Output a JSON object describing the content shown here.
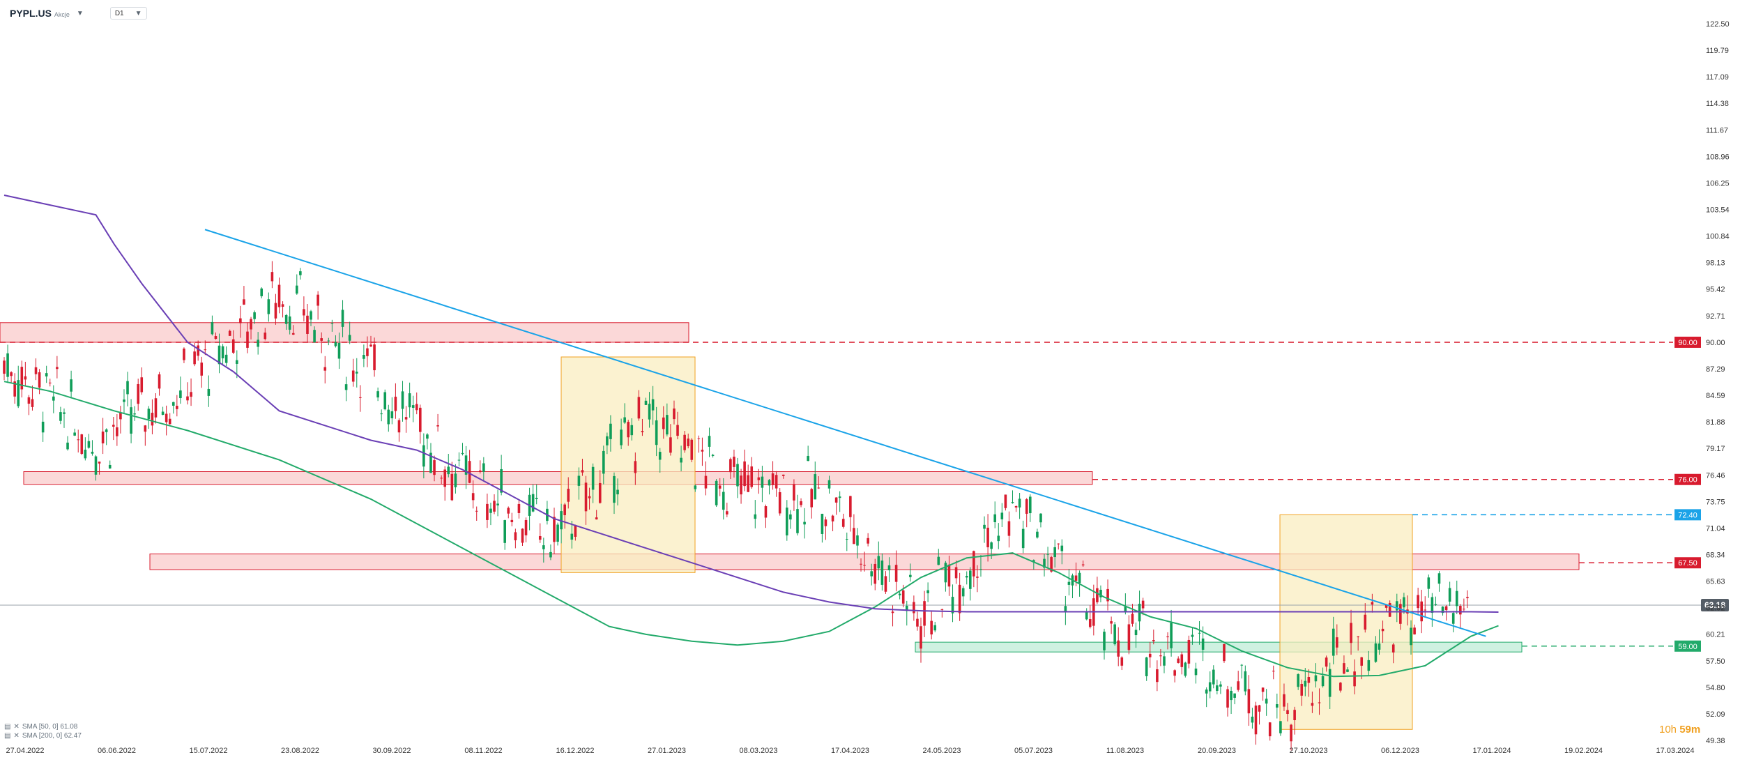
{
  "header": {
    "symbol": "PYPL.US",
    "symbol_type": "Akcje",
    "timeframe": "D1"
  },
  "legend": [
    {
      "label": "SMA [50, 0] 61.08",
      "color": "#22aa6a"
    },
    {
      "label": "SMA [200, 0] 62.47",
      "color": "#6a3fb5"
    }
  ],
  "timer": {
    "hours": "10h",
    "minutes": "59m"
  },
  "colors": {
    "up": "#0f9d58",
    "down": "#d81b2e",
    "sma50": "#22aa6a",
    "sma200": "#6a3fb5",
    "trendline": "#1aa3e8",
    "resistance_zone": "#f7b8b8",
    "support_zone": "#a8e6c8",
    "highlight_box": "#f9eec0"
  },
  "chart_data": {
    "type": "candlestick",
    "title": "",
    "y_axis": {
      "min": 49.38,
      "max": 122.5,
      "ticks": [
        "122.50",
        "119.79",
        "117.09",
        "114.38",
        "111.67",
        "108.96",
        "106.25",
        "103.54",
        "100.84",
        "98.13",
        "95.42",
        "92.71",
        "90.00",
        "87.29",
        "84.59",
        "81.88",
        "79.17",
        "76.46",
        "73.75",
        "71.04",
        "68.34",
        "65.63",
        "62.92",
        "60.21",
        "57.50",
        "54.80",
        "52.09",
        "49.38"
      ]
    },
    "x_axis": {
      "ticks": [
        "27.04.2022",
        "06.06.2022",
        "15.07.2022",
        "23.08.2022",
        "30.09.2022",
        "08.11.2022",
        "16.12.2022",
        "27.01.2023",
        "08.03.2023",
        "17.04.2023",
        "24.05.2023",
        "05.07.2023",
        "11.08.2023",
        "20.09.2023",
        "27.10.2023",
        "06.12.2023",
        "17.01.2024",
        "19.02.2024",
        "17.03.2024"
      ]
    },
    "last_price": 63.18,
    "horizontal_levels": [
      {
        "value": 90.0,
        "label": "90.00",
        "color": "#d81b2e"
      },
      {
        "value": 76.0,
        "label": "76.00",
        "color": "#d81b2e"
      },
      {
        "value": 72.4,
        "label": "72.40",
        "color": "#1aa3e8"
      },
      {
        "value": 67.5,
        "label": "67.50",
        "color": "#d81b2e"
      },
      {
        "value": 59.0,
        "label": "59.00",
        "color": "#22aa6a"
      }
    ],
    "zones": [
      {
        "kind": "resistance",
        "from_date": "27.04.2022",
        "to_date": "27.01.2023",
        "low": 90.0,
        "high": 92.0
      },
      {
        "kind": "resistance",
        "from_date": "27.04.2022",
        "to_date": "05.07.2023",
        "low": 75.5,
        "high": 76.8
      },
      {
        "kind": "resistance",
        "from_date": "06.06.2022",
        "to_date": "17.01.2024",
        "low": 66.8,
        "high": 68.4
      },
      {
        "kind": "support",
        "from_date": "24.05.2023",
        "to_date": "17.01.2024",
        "low": 58.4,
        "high": 59.4
      }
    ],
    "boxes": [
      {
        "from_date": "16.12.2022",
        "to_date": "27.01.2023",
        "low": 66.5,
        "high": 88.5
      },
      {
        "from_date": "20.09.2023",
        "to_date": "06.12.2023",
        "low": 50.5,
        "high": 72.4
      }
    ],
    "trendline": {
      "start": {
        "date": "15.07.2022",
        "value": 101.5
      },
      "end": {
        "date": "19.02.2024",
        "value": 60.0
      }
    },
    "series": [
      {
        "name": "SMA [50, 0]",
        "points": [
          [
            0,
            86
          ],
          [
            0.5,
            85
          ],
          [
            1.2,
            83
          ],
          [
            2,
            81
          ],
          [
            3,
            78
          ],
          [
            4,
            74
          ],
          [
            5,
            69
          ],
          [
            6,
            64
          ],
          [
            6.6,
            61
          ],
          [
            7,
            60.2
          ],
          [
            7.5,
            59.5
          ],
          [
            8,
            59.1
          ],
          [
            8.5,
            59.5
          ],
          [
            9,
            60.5
          ],
          [
            9.5,
            63
          ],
          [
            10,
            66
          ],
          [
            10.5,
            68
          ],
          [
            11,
            68.5
          ],
          [
            11.5,
            66.5
          ],
          [
            12,
            64
          ],
          [
            12.5,
            62
          ],
          [
            13,
            60.8
          ],
          [
            13.5,
            58.5
          ],
          [
            14,
            56.8
          ],
          [
            14.5,
            55.9
          ],
          [
            15,
            56
          ],
          [
            15.5,
            57
          ],
          [
            16,
            60
          ],
          [
            16.3,
            61.08
          ]
        ]
      },
      {
        "name": "SMA [200, 0]",
        "points": [
          [
            0,
            105
          ],
          [
            0.5,
            104
          ],
          [
            1,
            103
          ],
          [
            1.2,
            100
          ],
          [
            1.5,
            96
          ],
          [
            2,
            90
          ],
          [
            2.5,
            87
          ],
          [
            3,
            83
          ],
          [
            3.5,
            81.5
          ],
          [
            4,
            80
          ],
          [
            4.5,
            79
          ],
          [
            5,
            77
          ],
          [
            5.5,
            74.5
          ],
          [
            6,
            72
          ],
          [
            6.5,
            70.5
          ],
          [
            7,
            69
          ],
          [
            7.5,
            67.5
          ],
          [
            8,
            66
          ],
          [
            8.5,
            64.5
          ],
          [
            9,
            63.5
          ],
          [
            9.5,
            62.8
          ],
          [
            10,
            62.6
          ],
          [
            10.5,
            62.5
          ],
          [
            11,
            62.5
          ],
          [
            11.5,
            62.5
          ],
          [
            12,
            62.5
          ],
          [
            12.5,
            62.5
          ],
          [
            13,
            62.5
          ],
          [
            13.5,
            62.5
          ],
          [
            14,
            62.5
          ],
          [
            14.5,
            62.5
          ],
          [
            15,
            62.5
          ],
          [
            15.5,
            62.5
          ],
          [
            16,
            62.5
          ],
          [
            16.3,
            62.47
          ]
        ]
      }
    ],
    "candles_approx": [
      {
        "date": "27.04.2022",
        "close": 88
      },
      {
        "date": "06.06.2022",
        "close": 80
      },
      {
        "date": "15.07.2022",
        "close": 86
      },
      {
        "date": "23.08.2022",
        "close": 95
      },
      {
        "date": "30.09.2022",
        "close": 87
      },
      {
        "date": "08.11.2022",
        "close": 76
      },
      {
        "date": "16.12.2022",
        "close": 70
      },
      {
        "date": "27.01.2023",
        "close": 82
      },
      {
        "date": "08.03.2023",
        "close": 75
      },
      {
        "date": "17.04.2023",
        "close": 74
      },
      {
        "date": "24.05.2023",
        "close": 62
      },
      {
        "date": "05.07.2023",
        "close": 73
      },
      {
        "date": "11.08.2023",
        "close": 61
      },
      {
        "date": "20.09.2023",
        "close": 58
      },
      {
        "date": "27.10.2023",
        "close": 52
      },
      {
        "date": "06.12.2023",
        "close": 61
      },
      {
        "date": "17.01.2024",
        "close": 63.18
      }
    ],
    "grid": false,
    "legend_position": "bottom-left"
  }
}
